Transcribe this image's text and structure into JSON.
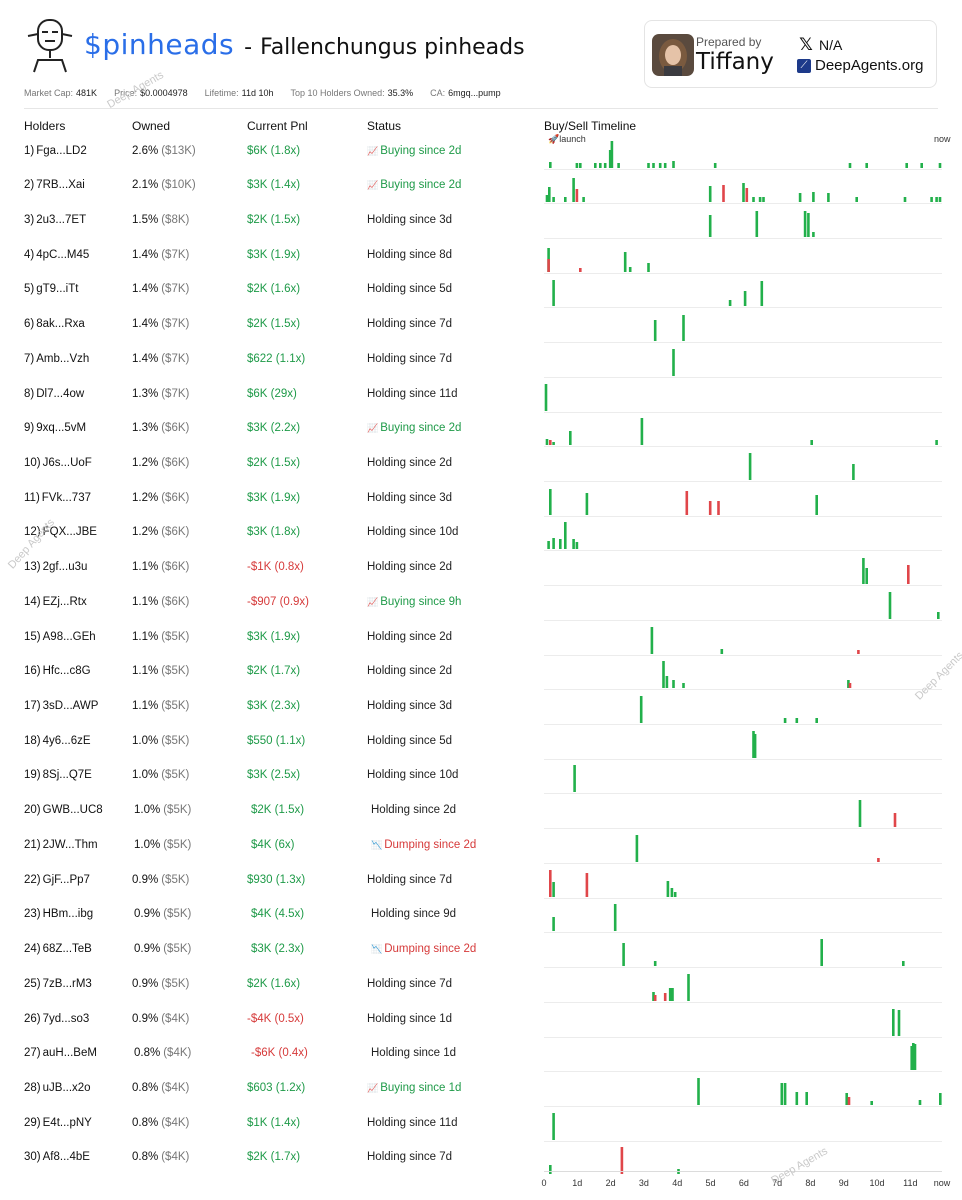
{
  "header": {
    "ticker": "$pinheads",
    "separator": "-",
    "name": "Fallenchungus pinheads",
    "prepared_by_label": "Prepared by",
    "prepared_by_name": "Tiffany",
    "x_handle": "N/A",
    "site": "DeepAgents.org"
  },
  "meta": {
    "market_cap_label": "Market Cap:",
    "market_cap": "481K",
    "price_label": "Price:",
    "price": "$0.0004978",
    "lifetime_label": "Lifetime:",
    "lifetime": "11d 10h",
    "top10_label": "Top 10 Holders Owned:",
    "top10": "35.3%",
    "ca_label": "CA:",
    "ca": "6mgq...pump"
  },
  "columns": {
    "holders": "Holders",
    "owned": "Owned",
    "pnl": "Current Pnl",
    "status": "Status",
    "timeline": "Buy/Sell Timeline"
  },
  "timeline_labels": {
    "launch": "🚀launch",
    "now": "now",
    "axis": [
      "0",
      "1d",
      "2d",
      "3d",
      "4d",
      "5d",
      "6d",
      "7d",
      "8d",
      "9d",
      "10d",
      "11d",
      "now"
    ]
  },
  "colors": {
    "buy": "#22b04b",
    "sell": "#e0464a",
    "ticker": "#2a6ee8",
    "positive": "#1e9a48",
    "negative": "#d63a3a"
  },
  "watermarks": [
    "Deep Agents",
    "Deep Agents",
    "Deep Agents",
    "Deep Agents"
  ],
  "holders": [
    {
      "rank": "1)",
      "addr": "Fga...LD2",
      "pct": "2.6%",
      "usd": "($13K)",
      "pnl": "$6K (1.8x)",
      "pnl_sign": "pos",
      "status": "Buying since 2d",
      "status_type": "buy",
      "status_icon": "📈",
      "trades": [
        [
          0.15,
          6,
          "b"
        ],
        [
          0.95,
          5,
          "b"
        ],
        [
          1.05,
          5,
          "b"
        ],
        [
          1.5,
          5,
          "b"
        ],
        [
          1.65,
          5,
          "b"
        ],
        [
          1.8,
          5,
          "b"
        ],
        [
          1.95,
          18,
          "b"
        ],
        [
          2.0,
          27,
          "b"
        ],
        [
          2.2,
          5,
          "b"
        ],
        [
          3.1,
          5,
          "b"
        ],
        [
          3.25,
          5,
          "b"
        ],
        [
          3.45,
          5,
          "b"
        ],
        [
          3.6,
          5,
          "b"
        ],
        [
          3.85,
          7,
          "b"
        ],
        [
          5.1,
          5,
          "b"
        ],
        [
          9.15,
          5,
          "b"
        ],
        [
          9.65,
          5,
          "b"
        ],
        [
          10.85,
          5,
          "b"
        ],
        [
          11.3,
          5,
          "b"
        ],
        [
          11.85,
          5,
          "b"
        ]
      ]
    },
    {
      "rank": "2)",
      "addr": "7RB...Xai",
      "pct": "2.1%",
      "usd": "($10K)",
      "pnl": "$3K (1.4x)",
      "pnl_sign": "pos",
      "status": "Buying since 2d",
      "status_type": "buy",
      "status_icon": "📈",
      "trades": [
        [
          0.05,
          7,
          "b"
        ],
        [
          0.12,
          15,
          "b"
        ],
        [
          0.25,
          5,
          "b"
        ],
        [
          0.6,
          5,
          "b"
        ],
        [
          0.85,
          24,
          "b"
        ],
        [
          0.95,
          13,
          "s"
        ],
        [
          1.15,
          5,
          "b"
        ],
        [
          4.95,
          16,
          "b"
        ],
        [
          5.35,
          17,
          "s"
        ],
        [
          5.95,
          19,
          "b"
        ],
        [
          6.05,
          14,
          "s"
        ],
        [
          6.25,
          5,
          "b"
        ],
        [
          6.45,
          5,
          "b"
        ],
        [
          6.55,
          5,
          "b"
        ],
        [
          7.65,
          9,
          "b"
        ],
        [
          8.05,
          10,
          "b"
        ],
        [
          8.5,
          9,
          "b"
        ],
        [
          9.35,
          5,
          "b"
        ],
        [
          10.8,
          5,
          "b"
        ],
        [
          11.6,
          5,
          "b"
        ],
        [
          11.75,
          5,
          "b"
        ],
        [
          11.85,
          5,
          "b"
        ]
      ]
    },
    {
      "rank": "3)",
      "addr": "2u3...7ET",
      "pct": "1.5%",
      "usd": "($8K)",
      "pnl": "$2K (1.5x)",
      "pnl_sign": "pos",
      "status": "Holding since 3d",
      "status_type": "hold",
      "trades": [
        [
          4.95,
          22,
          "b"
        ],
        [
          6.35,
          26,
          "b"
        ],
        [
          7.8,
          26,
          "b"
        ],
        [
          7.9,
          24,
          "b"
        ],
        [
          8.05,
          5,
          "b"
        ]
      ]
    },
    {
      "rank": "4)",
      "addr": "4pC...M45",
      "pct": "1.4%",
      "usd": "($7K)",
      "pnl": "$3K (1.9x)",
      "pnl_sign": "pos",
      "status": "Holding since 8d",
      "status_type": "hold",
      "trades": [
        [
          0.1,
          24,
          "b"
        ],
        [
          0.1,
          13,
          "s"
        ],
        [
          1.05,
          4,
          "s"
        ],
        [
          2.4,
          20,
          "b"
        ],
        [
          2.55,
          5,
          "b"
        ],
        [
          3.1,
          9,
          "b"
        ]
      ]
    },
    {
      "rank": "5)",
      "addr": "gT9...iTt",
      "pct": "1.4%",
      "usd": "($7K)",
      "pnl": "$2K (1.6x)",
      "pnl_sign": "pos",
      "status": "Holding since 5d",
      "status_type": "hold",
      "trades": [
        [
          0.25,
          26,
          "b"
        ],
        [
          5.55,
          6,
          "b"
        ],
        [
          6.0,
          15,
          "b"
        ],
        [
          6.5,
          25,
          "b"
        ]
      ]
    },
    {
      "rank": "6)",
      "addr": "8ak...Rxa",
      "pct": "1.4%",
      "usd": "($7K)",
      "pnl": "$2K (1.5x)",
      "pnl_sign": "pos",
      "status": "Holding since 7d",
      "status_type": "hold",
      "trades": [
        [
          3.3,
          21,
          "b"
        ],
        [
          4.15,
          26,
          "b"
        ]
      ]
    },
    {
      "rank": "7)",
      "addr": "Amb...Vzh",
      "pct": "1.4%",
      "usd": "($7K)",
      "pnl": "$622 (1.1x)",
      "pnl_sign": "pos",
      "status": "Holding since 7d",
      "status_type": "hold",
      "trades": [
        [
          3.85,
          27,
          "b"
        ]
      ]
    },
    {
      "rank": "8)",
      "addr": "Dl7...4ow",
      "pct": "1.3%",
      "usd": "($7K)",
      "pnl": "$6K (29x)",
      "pnl_sign": "pos",
      "status": "Holding since 11d",
      "status_type": "hold",
      "trades": [
        [
          0.02,
          27,
          "b"
        ]
      ]
    },
    {
      "rank": "9)",
      "addr": "9xq...5vM",
      "pct": "1.3%",
      "usd": "($6K)",
      "pnl": "$3K (2.2x)",
      "pnl_sign": "pos",
      "status": "Buying since 2d",
      "status_type": "buy",
      "status_icon": "📈",
      "trades": [
        [
          0.05,
          6,
          "b"
        ],
        [
          0.15,
          5,
          "s"
        ],
        [
          0.25,
          3,
          "b"
        ],
        [
          0.75,
          14,
          "b"
        ],
        [
          2.9,
          27,
          "b"
        ],
        [
          8.0,
          5,
          "b"
        ],
        [
          11.75,
          5,
          "b"
        ]
      ]
    },
    {
      "rank": "10)",
      "addr": "J6s...UoF",
      "pct": "1.2%",
      "usd": "($6K)",
      "pnl": "$2K (1.5x)",
      "pnl_sign": "pos",
      "status": "Holding since 2d",
      "status_type": "hold",
      "trades": [
        [
          6.15,
          27,
          "b"
        ],
        [
          9.25,
          16,
          "b"
        ]
      ]
    },
    {
      "rank": "11)",
      "addr": "FVk...737",
      "pct": "1.2%",
      "usd": "($6K)",
      "pnl": "$3K (1.9x)",
      "pnl_sign": "pos",
      "status": "Holding since 3d",
      "status_type": "hold",
      "trades": [
        [
          0.15,
          26,
          "b"
        ],
        [
          1.25,
          22,
          "b"
        ],
        [
          4.25,
          24,
          "s"
        ],
        [
          4.95,
          14,
          "s"
        ],
        [
          5.2,
          14,
          "s"
        ],
        [
          8.15,
          20,
          "b"
        ]
      ]
    },
    {
      "rank": "12)",
      "addr": "FQX...JBE",
      "pct": "1.2%",
      "usd": "($6K)",
      "pnl": "$3K (1.8x)",
      "pnl_sign": "pos",
      "status": "Holding since 10d",
      "status_type": "hold",
      "trades": [
        [
          0.1,
          8,
          "b"
        ],
        [
          0.25,
          11,
          "b"
        ],
        [
          0.45,
          10,
          "b"
        ],
        [
          0.6,
          27,
          "b"
        ],
        [
          0.85,
          10,
          "b"
        ],
        [
          0.95,
          7,
          "b"
        ]
      ]
    },
    {
      "rank": "13)",
      "addr": "2gf...u3u",
      "pct": "1.1%",
      "usd": "($6K)",
      "pnl": "-$1K (0.8x)",
      "pnl_sign": "neg",
      "status": "Holding since 2d",
      "status_type": "hold",
      "trades": [
        [
          9.55,
          26,
          "b"
        ],
        [
          9.65,
          16,
          "b"
        ],
        [
          10.9,
          19,
          "s"
        ]
      ]
    },
    {
      "rank": "14)",
      "addr": "EZj...Rtx",
      "pct": "1.1%",
      "usd": "($6K)",
      "pnl": "-$907 (0.9x)",
      "pnl_sign": "neg",
      "status": "Buying since 9h",
      "status_type": "buy",
      "status_icon": "📈",
      "trades": [
        [
          10.35,
          27,
          "b"
        ],
        [
          11.8,
          7,
          "b"
        ]
      ]
    },
    {
      "rank": "15)",
      "addr": "A98...GEh",
      "pct": "1.1%",
      "usd": "($5K)",
      "pnl": "$3K (1.9x)",
      "pnl_sign": "pos",
      "status": "Holding since 2d",
      "status_type": "hold",
      "trades": [
        [
          3.2,
          27,
          "b"
        ],
        [
          5.3,
          5,
          "b"
        ],
        [
          9.4,
          4,
          "s"
        ]
      ]
    },
    {
      "rank": "16)",
      "addr": "Hfc...c8G",
      "pct": "1.1%",
      "usd": "($5K)",
      "pnl": "$2K (1.7x)",
      "pnl_sign": "pos",
      "status": "Holding since 2d",
      "status_type": "hold",
      "trades": [
        [
          3.55,
          27,
          "b"
        ],
        [
          3.65,
          12,
          "b"
        ],
        [
          3.85,
          8,
          "b"
        ],
        [
          4.15,
          5,
          "b"
        ],
        [
          9.1,
          8,
          "b"
        ],
        [
          9.15,
          5,
          "s"
        ]
      ]
    },
    {
      "rank": "17)",
      "addr": "3sD...AWP",
      "pct": "1.1%",
      "usd": "($5K)",
      "pnl": "$3K (2.3x)",
      "pnl_sign": "pos",
      "status": "Holding since 3d",
      "status_type": "hold",
      "trades": [
        [
          2.88,
          27,
          "b"
        ],
        [
          7.2,
          5,
          "b"
        ],
        [
          7.55,
          5,
          "b"
        ],
        [
          8.15,
          5,
          "b"
        ]
      ]
    },
    {
      "rank": "18)",
      "addr": "4y6...6zE",
      "pct": "1.0%",
      "usd": "($5K)",
      "pnl": "$550 (1.1x)",
      "pnl_sign": "pos",
      "status": "Holding since 5d",
      "status_type": "hold",
      "trades": [
        [
          6.25,
          27,
          "b"
        ],
        [
          6.3,
          24,
          "b"
        ]
      ]
    },
    {
      "rank": "19)",
      "addr": "8Sj...Q7E",
      "pct": "1.0%",
      "usd": "($5K)",
      "pnl": "$3K (2.5x)",
      "pnl_sign": "pos",
      "status": "Holding since 10d",
      "status_type": "hold",
      "trades": [
        [
          0.88,
          27,
          "b"
        ]
      ]
    },
    {
      "rank": "20)",
      "addr": "GWB...UC8",
      "pct": "1.0%",
      "usd": "($5K)",
      "pnl": "$2K (1.5x)",
      "pnl_sign": "pos",
      "status": "Holding since 2d",
      "status_type": "hold",
      "indent": true,
      "trades": [
        [
          9.45,
          27,
          "b"
        ],
        [
          10.5,
          14,
          "s"
        ]
      ]
    },
    {
      "rank": "21)",
      "addr": "2JW...Thm",
      "pct": "1.0%",
      "usd": "($5K)",
      "pnl": "$4K (6x)",
      "pnl_sign": "pos",
      "status": "Dumping since 2d",
      "status_type": "dump",
      "status_icon": "📉",
      "indent": true,
      "trades": [
        [
          2.75,
          27,
          "b"
        ],
        [
          10.0,
          4,
          "s"
        ]
      ]
    },
    {
      "rank": "22)",
      "addr": "GjF...Pp7",
      "pct": "0.9%",
      "usd": "($5K)",
      "pnl": "$930 (1.3x)",
      "pnl_sign": "pos",
      "status": "Holding since 7d",
      "status_type": "hold",
      "trades": [
        [
          0.15,
          27,
          "s"
        ],
        [
          0.25,
          15,
          "b"
        ],
        [
          1.25,
          24,
          "s"
        ],
        [
          3.68,
          16,
          "b"
        ],
        [
          3.8,
          9,
          "b"
        ],
        [
          3.9,
          5,
          "b"
        ]
      ]
    },
    {
      "rank": "23)",
      "addr": "HBm...ibg",
      "pct": "0.9%",
      "usd": "($5K)",
      "pnl": "$4K (4.5x)",
      "pnl_sign": "pos",
      "status": "Holding since 9d",
      "status_type": "hold",
      "indent": true,
      "trades": [
        [
          0.25,
          14,
          "b"
        ],
        [
          2.1,
          27,
          "b"
        ]
      ]
    },
    {
      "rank": "24)",
      "addr": "68Z...TeB",
      "pct": "0.9%",
      "usd": "($5K)",
      "pnl": "$3K (2.3x)",
      "pnl_sign": "pos",
      "status": "Dumping since 2d",
      "status_type": "dump",
      "status_icon": "📉",
      "indent": true,
      "trades": [
        [
          2.35,
          23,
          "b"
        ],
        [
          3.3,
          5,
          "b"
        ],
        [
          8.3,
          27,
          "b"
        ],
        [
          10.75,
          5,
          "b"
        ]
      ]
    },
    {
      "rank": "25)",
      "addr": "7zB...rM3",
      "pct": "0.9%",
      "usd": "($5K)",
      "pnl": "$2K (1.6x)",
      "pnl_sign": "pos",
      "status": "Holding since 7d",
      "status_type": "hold",
      "trades": [
        [
          3.25,
          9,
          "b"
        ],
        [
          3.3,
          6,
          "s"
        ],
        [
          3.6,
          8,
          "s"
        ],
        [
          3.75,
          13,
          "b"
        ],
        [
          3.82,
          13,
          "b"
        ],
        [
          4.3,
          27,
          "b"
        ]
      ]
    },
    {
      "rank": "26)",
      "addr": "7yd...so3",
      "pct": "0.9%",
      "usd": "($4K)",
      "pnl": "-$4K (0.5x)",
      "pnl_sign": "neg",
      "status": "Holding since 1d",
      "status_type": "hold",
      "trades": [
        [
          10.45,
          27,
          "b"
        ],
        [
          10.62,
          26,
          "b"
        ]
      ]
    },
    {
      "rank": "27)",
      "addr": "auH...BeM",
      "pct": "0.8%",
      "usd": "($4K)",
      "pnl": "-$6K (0.4x)",
      "pnl_sign": "neg",
      "status": "Holding since 1d",
      "status_type": "hold",
      "indent": true,
      "trades": [
        [
          11.0,
          24,
          "b"
        ],
        [
          11.05,
          27,
          "b"
        ],
        [
          11.1,
          26,
          "b"
        ]
      ]
    },
    {
      "rank": "28)",
      "addr": "uJB...x2o",
      "pct": "0.8%",
      "usd": "($4K)",
      "pnl": "$603 (1.2x)",
      "pnl_sign": "pos",
      "status": "Buying since 1d",
      "status_type": "buy",
      "status_icon": "📈",
      "trades": [
        [
          4.6,
          27,
          "b"
        ],
        [
          7.1,
          22,
          "b"
        ],
        [
          7.2,
          22,
          "b"
        ],
        [
          7.55,
          13,
          "b"
        ],
        [
          7.85,
          13,
          "b"
        ],
        [
          9.05,
          12,
          "b"
        ],
        [
          9.12,
          8,
          "s"
        ],
        [
          9.8,
          4,
          "b"
        ],
        [
          11.25,
          5,
          "b"
        ],
        [
          11.9,
          12,
          "b"
        ]
      ]
    },
    {
      "rank": "29)",
      "addr": "E4t...pNY",
      "pct": "0.8%",
      "usd": "($4K)",
      "pnl": "$1K (1.4x)",
      "pnl_sign": "pos",
      "status": "Holding since 11d",
      "status_type": "hold",
      "trades": [
        [
          0.25,
          27,
          "b"
        ]
      ]
    },
    {
      "rank": "30)",
      "addr": "Af8...4bE",
      "pct": "0.8%",
      "usd": "($4K)",
      "pnl": "$2K (1.7x)",
      "pnl_sign": "pos",
      "status": "Holding since 7d",
      "status_type": "hold",
      "trades": [
        [
          0.15,
          9,
          "b"
        ],
        [
          2.3,
          27,
          "s"
        ],
        [
          4.0,
          5,
          "b"
        ]
      ]
    }
  ]
}
